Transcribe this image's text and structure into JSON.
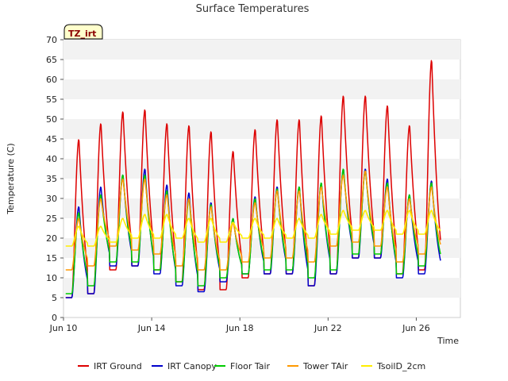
{
  "chart_data": {
    "type": "line",
    "title": "Surface Temperatures",
    "xlabel": "Time",
    "ylabel": "Temperature (C)",
    "badge": "TZ_irt",
    "ylim": [
      0,
      70
    ],
    "yticks": [
      0,
      5,
      10,
      15,
      20,
      25,
      30,
      35,
      40,
      45,
      50,
      55,
      60,
      65,
      70
    ],
    "xlim": [
      "2023-06-10",
      "2023-06-28"
    ],
    "xticks": [
      {
        "date": "2023-06-10",
        "label": "Jun 10"
      },
      {
        "date": "2023-06-14",
        "label": "Jun 14"
      },
      {
        "date": "2023-06-18",
        "label": "Jun 18"
      },
      {
        "date": "2023-06-22",
        "label": "Jun 22"
      },
      {
        "date": "2023-06-26",
        "label": "Jun 26"
      }
    ],
    "grid": "horizontal bands",
    "legend_position": "bottom",
    "series": [
      {
        "name": "IRT Ground",
        "color": "#dd0000",
        "daily_max": [
          45,
          49,
          52,
          52.5,
          49,
          48.5,
          47,
          42,
          47.5,
          50,
          50,
          51,
          56,
          56,
          53.5,
          48.5,
          65
        ],
        "daily_min": [
          5,
          6,
          12,
          13,
          12,
          9,
          7,
          7,
          10,
          11,
          11,
          8,
          11,
          15,
          15,
          11,
          12
        ]
      },
      {
        "name": "IRT Canopy",
        "color": "#0000cc",
        "daily_max": [
          28,
          33,
          36,
          37.5,
          33.5,
          31.5,
          29,
          25,
          30.5,
          33,
          33,
          34,
          37.5,
          37.5,
          35,
          31,
          34.5
        ],
        "daily_min": [
          5,
          6,
          13,
          13,
          11,
          8,
          6.5,
          9,
          11,
          11,
          11,
          8,
          11,
          15,
          15,
          10,
          11
        ]
      },
      {
        "name": "Floor Tair",
        "color": "#00cc00",
        "daily_max": [
          26.5,
          31,
          36,
          36,
          32,
          30,
          28.5,
          25,
          30,
          32.5,
          33,
          34,
          37.5,
          37,
          34,
          31,
          34
        ],
        "daily_min": [
          6,
          8,
          14,
          14,
          12,
          9,
          8,
          10,
          11,
          12,
          12,
          10,
          12,
          16,
          16,
          11,
          13
        ]
      },
      {
        "name": "Tower TAir",
        "color": "#ff9900",
        "daily_max": [
          25,
          30,
          35,
          35,
          31,
          30,
          28,
          24,
          29,
          32,
          32,
          33,
          36,
          37,
          33,
          30,
          33
        ],
        "daily_min": [
          12,
          13,
          18,
          17,
          16,
          13,
          12,
          12,
          14,
          15,
          15,
          14,
          18,
          19,
          18,
          14,
          16
        ]
      },
      {
        "name": "TsoilD_2cm",
        "color": "#ffee00",
        "daily_max": [
          23,
          23,
          25,
          26,
          26,
          25,
          25,
          24,
          25,
          25,
          25,
          26,
          27,
          27,
          27,
          27,
          27
        ],
        "daily_min": [
          18,
          18,
          19,
          20,
          20,
          20,
          19,
          19,
          20,
          20,
          20,
          20,
          21,
          22,
          22,
          21,
          21
        ]
      }
    ]
  }
}
